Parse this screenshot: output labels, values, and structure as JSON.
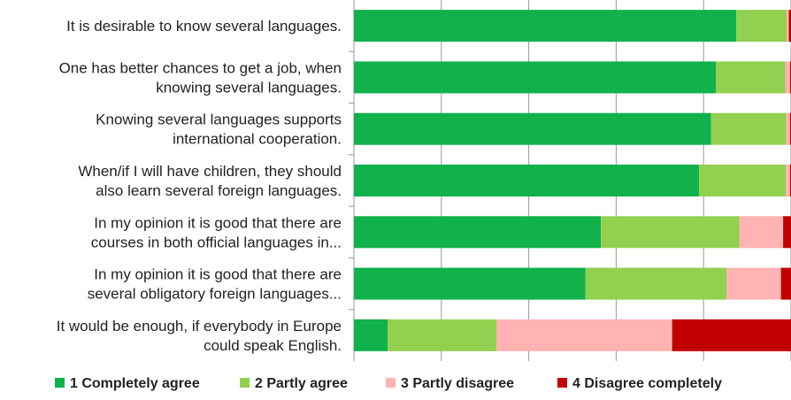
{
  "chart_data": {
    "type": "bar",
    "orientation": "horizontal",
    "stacked": true,
    "title": "",
    "xlabel": "",
    "ylabel": "",
    "xlim": [
      0,
      100
    ],
    "grid": true,
    "legend_position": "bottom",
    "categories": [
      [
        "It is desirable to know several languages."
      ],
      [
        "One has better chances to get a job, when",
        "knowing several languages."
      ],
      [
        "Knowing several languages supports",
        "international cooperation."
      ],
      [
        "When/if I will have children, they should",
        "also learn several foreign languages."
      ],
      [
        "In my opinion it is good that there are",
        "courses in both official languages in..."
      ],
      [
        "In my opinion it is good that there are",
        "several obligatory foreign languages..."
      ],
      [
        "It would be enough, if everybody in Europe",
        "could speak English."
      ]
    ],
    "series": [
      {
        "name": "1 Completely agree",
        "color": "#11b14c",
        "values": [
          87.5,
          82.8,
          81.7,
          79.0,
          56.5,
          53.0,
          7.7
        ]
      },
      {
        "name": "2 Partly agree",
        "color": "#92d050",
        "values": [
          11.5,
          15.9,
          17.2,
          19.8,
          31.7,
          32.3,
          24.9
        ]
      },
      {
        "name": "3 Partly disagree",
        "color": "#ffb3b3",
        "values": [
          0.5,
          1.1,
          0.9,
          1.0,
          10.0,
          12.4,
          40.2
        ]
      },
      {
        "name": "4 Disagree completely",
        "color": "#c00000",
        "values": [
          0.5,
          0.2,
          0.2,
          0.2,
          1.8,
          2.3,
          27.2
        ]
      }
    ]
  }
}
